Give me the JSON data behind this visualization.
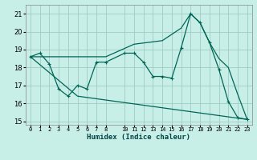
{
  "xlabel": "Humidex (Indice chaleur)",
  "bg_color": "#c8eee8",
  "grid_color": "#a0ccc4",
  "line_color": "#006655",
  "xlim": [
    -0.5,
    23.5
  ],
  "ylim": [
    14.8,
    21.5
  ],
  "yticks": [
    15,
    16,
    17,
    18,
    19,
    20,
    21
  ],
  "xticks": [
    0,
    1,
    2,
    3,
    4,
    5,
    6,
    7,
    8,
    10,
    11,
    12,
    13,
    14,
    15,
    16,
    17,
    18,
    19,
    20,
    21,
    22,
    23
  ],
  "xtick_labels": [
    "0",
    "1",
    "2",
    "3",
    "4",
    "5",
    "6",
    "7",
    "8",
    "10",
    "11",
    "12",
    "13",
    "14",
    "15",
    "16",
    "17",
    "18",
    "19",
    "20",
    "21",
    "22",
    "23"
  ],
  "line1_x": [
    0,
    1,
    2,
    3,
    4,
    5,
    6,
    7,
    8,
    10,
    11,
    12,
    13,
    14,
    15,
    16,
    17,
    18,
    19,
    20,
    21,
    22,
    23
  ],
  "line1_y": [
    18.6,
    18.8,
    18.2,
    16.8,
    16.4,
    17.0,
    16.8,
    18.3,
    18.3,
    18.8,
    18.8,
    18.3,
    17.5,
    17.5,
    17.4,
    19.1,
    21.0,
    20.5,
    19.4,
    17.9,
    16.1,
    15.2,
    15.1
  ],
  "line2_x": [
    0,
    8,
    11,
    14,
    16,
    17,
    18,
    19,
    20,
    21,
    22,
    23
  ],
  "line2_y": [
    18.6,
    18.6,
    19.3,
    19.5,
    20.2,
    21.0,
    20.5,
    19.4,
    18.5,
    18.0,
    16.5,
    15.1
  ],
  "line3_x": [
    0,
    5,
    23
  ],
  "line3_y": [
    18.6,
    16.4,
    15.1
  ]
}
